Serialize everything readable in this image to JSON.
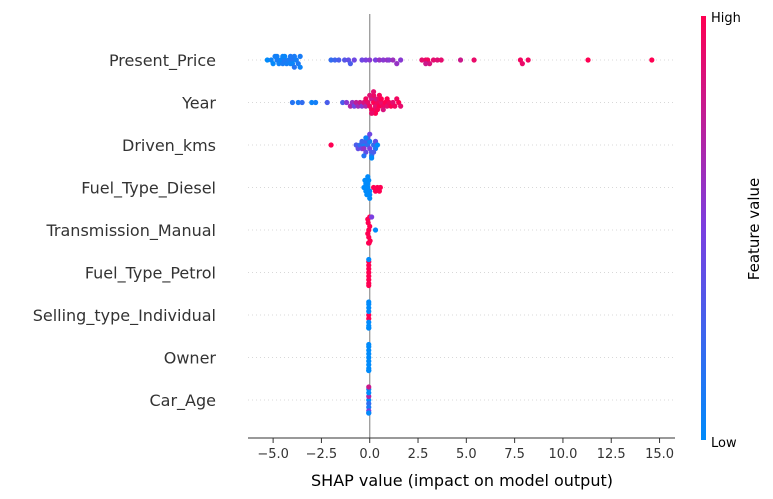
{
  "chart_data": {
    "type": "scatter",
    "subtype": "shap-beeswarm",
    "title": "",
    "xlabel": "SHAP value (impact on model output)",
    "ylabel": "",
    "xlim": [
      -6.3,
      15.8
    ],
    "x_ticks": [
      -5.0,
      -2.5,
      0.0,
      2.5,
      5.0,
      7.5,
      10.0,
      12.5,
      15.0
    ],
    "x_tick_labels": [
      "−5.0",
      "−2.5",
      "0.0",
      "2.5",
      "5.0",
      "7.5",
      "10.0",
      "12.5",
      "15.0"
    ],
    "zero_line": true,
    "colorbar": {
      "title": "Feature value",
      "high_label": "High",
      "low_label": "Low",
      "low_color": "#008bfb",
      "mid_color": "#7b3fe0",
      "high_color": "#ff0052"
    },
    "features": [
      {
        "name": "Present_Price",
        "points": [
          {
            "x": -5.3,
            "v": 0.0
          },
          {
            "x": -5.1,
            "v": 0.05
          },
          {
            "x": -5.0,
            "v": 0.02
          },
          {
            "x": -4.9,
            "v": 0.08
          },
          {
            "x": -4.8,
            "v": 0.1
          },
          {
            "x": -4.7,
            "v": 0.06
          },
          {
            "x": -4.6,
            "v": 0.04
          },
          {
            "x": -4.5,
            "v": 0.1
          },
          {
            "x": -4.5,
            "v": 0.05
          },
          {
            "x": -4.4,
            "v": 0.12
          },
          {
            "x": -4.3,
            "v": 0.08
          },
          {
            "x": -4.2,
            "v": 0.1
          },
          {
            "x": -4.1,
            "v": 0.06
          },
          {
            "x": -4.0,
            "v": 0.14
          },
          {
            "x": -4.0,
            "v": 0.04
          },
          {
            "x": -3.9,
            "v": 0.1
          },
          {
            "x": -3.8,
            "v": 0.08
          },
          {
            "x": -3.7,
            "v": 0.12
          },
          {
            "x": -3.6,
            "v": 0.1
          },
          {
            "x": -3.6,
            "v": 0.05
          },
          {
            "x": -3.9,
            "v": 0.15
          },
          {
            "x": -4.4,
            "v": 0.03
          },
          {
            "x": -4.8,
            "v": 0.07
          },
          {
            "x": -4.1,
            "v": 0.12
          },
          {
            "x": -2.0,
            "v": 0.2
          },
          {
            "x": -1.8,
            "v": 0.25
          },
          {
            "x": -1.6,
            "v": 0.3
          },
          {
            "x": -1.3,
            "v": 0.35
          },
          {
            "x": -1.1,
            "v": 0.4
          },
          {
            "x": -1.0,
            "v": 0.3
          },
          {
            "x": -0.8,
            "v": 0.45
          },
          {
            "x": -0.4,
            "v": 0.45
          },
          {
            "x": -0.2,
            "v": 0.5
          },
          {
            "x": 0.0,
            "v": 0.55
          },
          {
            "x": 0.3,
            "v": 0.5
          },
          {
            "x": 0.5,
            "v": 0.6
          },
          {
            "x": 0.7,
            "v": 0.55
          },
          {
            "x": 0.9,
            "v": 0.6
          },
          {
            "x": 1.0,
            "v": 0.55
          },
          {
            "x": 1.2,
            "v": 0.62
          },
          {
            "x": 1.4,
            "v": 0.6
          },
          {
            "x": 1.6,
            "v": 0.55
          },
          {
            "x": 2.7,
            "v": 0.9
          },
          {
            "x": 2.9,
            "v": 0.92
          },
          {
            "x": 3.0,
            "v": 0.95
          },
          {
            "x": 3.1,
            "v": 0.85
          },
          {
            "x": 3.3,
            "v": 0.9
          },
          {
            "x": 3.5,
            "v": 0.88
          },
          {
            "x": 3.7,
            "v": 0.9
          },
          {
            "x": 2.9,
            "v": 0.8
          },
          {
            "x": 4.7,
            "v": 0.8
          },
          {
            "x": 5.4,
            "v": 0.92
          },
          {
            "x": 7.8,
            "v": 0.95
          },
          {
            "x": 7.9,
            "v": 0.92
          },
          {
            "x": 8.2,
            "v": 0.95
          },
          {
            "x": 11.3,
            "v": 1.0
          },
          {
            "x": 14.6,
            "v": 1.0
          }
        ]
      },
      {
        "name": "Year",
        "points": [
          {
            "x": -4.0,
            "v": 0.15
          },
          {
            "x": -3.7,
            "v": 0.1
          },
          {
            "x": -3.5,
            "v": 0.2
          },
          {
            "x": -3.0,
            "v": 0.05
          },
          {
            "x": -2.8,
            "v": 0.08
          },
          {
            "x": -2.2,
            "v": 0.3
          },
          {
            "x": -1.4,
            "v": 0.3
          },
          {
            "x": -1.2,
            "v": 0.55
          },
          {
            "x": -1.0,
            "v": 0.7
          },
          {
            "x": -0.9,
            "v": 0.6
          },
          {
            "x": -0.8,
            "v": 0.45
          },
          {
            "x": -0.7,
            "v": 0.75
          },
          {
            "x": -0.6,
            "v": 0.65
          },
          {
            "x": -0.5,
            "v": 0.8
          },
          {
            "x": -0.4,
            "v": 0.55
          },
          {
            "x": -0.3,
            "v": 0.85
          },
          {
            "x": -0.2,
            "v": 0.7
          },
          {
            "x": -0.1,
            "v": 0.9
          },
          {
            "x": 0.0,
            "v": 0.95
          },
          {
            "x": 0.1,
            "v": 0.8
          },
          {
            "x": 0.2,
            "v": 1.0
          },
          {
            "x": 0.3,
            "v": 0.9
          },
          {
            "x": 0.4,
            "v": 0.95
          },
          {
            "x": 0.5,
            "v": 1.0
          },
          {
            "x": 0.6,
            "v": 0.9
          },
          {
            "x": 0.7,
            "v": 0.95
          },
          {
            "x": 0.8,
            "v": 1.0
          },
          {
            "x": 0.9,
            "v": 0.9
          },
          {
            "x": 1.0,
            "v": 0.95
          },
          {
            "x": 1.1,
            "v": 1.0
          },
          {
            "x": 1.2,
            "v": 0.9
          },
          {
            "x": 1.3,
            "v": 0.95
          },
          {
            "x": 1.4,
            "v": 0.95
          },
          {
            "x": 1.5,
            "v": 1.0
          },
          {
            "x": 1.6,
            "v": 0.9
          },
          {
            "x": 0.3,
            "v": 0.85
          },
          {
            "x": 0.5,
            "v": 0.92
          },
          {
            "x": 0.2,
            "v": 0.88
          },
          {
            "x": 0.6,
            "v": 1.0
          },
          {
            "x": 0.1,
            "v": 0.98
          },
          {
            "x": -0.2,
            "v": 0.95
          },
          {
            "x": 0.4,
            "v": 0.98
          },
          {
            "x": 0.7,
            "v": 0.85
          },
          {
            "x": 0.9,
            "v": 1.0
          },
          {
            "x": 0.2,
            "v": 0.93
          },
          {
            "x": 0.0,
            "v": 0.88
          },
          {
            "x": 0.3,
            "v": 1.0
          },
          {
            "x": 0.5,
            "v": 0.97
          },
          {
            "x": 0.1,
            "v": 0.92
          },
          {
            "x": 0.2,
            "v": 0.9
          }
        ]
      },
      {
        "name": "Driven_kms",
        "points": [
          {
            "x": -2.0,
            "v": 1.0
          },
          {
            "x": -0.7,
            "v": 0.3
          },
          {
            "x": -0.6,
            "v": 0.4
          },
          {
            "x": -0.5,
            "v": 0.2
          },
          {
            "x": -0.4,
            "v": 0.5
          },
          {
            "x": -0.3,
            "v": 0.1
          },
          {
            "x": -0.3,
            "v": 0.6
          },
          {
            "x": -0.2,
            "v": 0.3
          },
          {
            "x": -0.2,
            "v": 0.4
          },
          {
            "x": -0.1,
            "v": 0.2
          },
          {
            "x": 0.0,
            "v": 0.5
          },
          {
            "x": 0.0,
            "v": 0.05
          },
          {
            "x": 0.1,
            "v": 0.3
          },
          {
            "x": 0.2,
            "v": 0.2
          },
          {
            "x": 0.3,
            "v": 0.1
          },
          {
            "x": 0.3,
            "v": 0.4
          },
          {
            "x": 0.4,
            "v": 0.0
          },
          {
            "x": -0.4,
            "v": 0.25
          },
          {
            "x": -0.1,
            "v": 0.35
          },
          {
            "x": 0.1,
            "v": 0.15
          },
          {
            "x": -0.2,
            "v": 0.05
          },
          {
            "x": 0.0,
            "v": 0.45
          },
          {
            "x": 0.2,
            "v": 0.3
          },
          {
            "x": -0.3,
            "v": 0.15
          },
          {
            "x": 0.1,
            "v": 0.0
          }
        ]
      },
      {
        "name": "Fuel_Type_Diesel",
        "points": [
          {
            "x": -0.3,
            "v": 0.0
          },
          {
            "x": -0.2,
            "v": 0.0
          },
          {
            "x": -0.1,
            "v": 0.0
          },
          {
            "x": 0.0,
            "v": 0.0
          },
          {
            "x": -0.2,
            "v": 0.0
          },
          {
            "x": -0.1,
            "v": 0.0
          },
          {
            "x": 0.0,
            "v": 0.0
          },
          {
            "x": -0.05,
            "v": 0.0
          },
          {
            "x": -0.15,
            "v": 0.0
          },
          {
            "x": -0.25,
            "v": 0.0
          },
          {
            "x": 0.0,
            "v": 0.0
          },
          {
            "x": -0.1,
            "v": 0.0
          },
          {
            "x": 0.2,
            "v": 1.0
          },
          {
            "x": 0.3,
            "v": 1.0
          },
          {
            "x": 0.4,
            "v": 1.0
          },
          {
            "x": 0.5,
            "v": 1.0
          },
          {
            "x": 0.55,
            "v": 1.0
          }
        ]
      },
      {
        "name": "Transmission_Manual",
        "points": [
          {
            "x": -0.05,
            "v": 1.0
          },
          {
            "x": -0.1,
            "v": 1.0
          },
          {
            "x": 0.0,
            "v": 1.0
          },
          {
            "x": -0.05,
            "v": 1.0
          },
          {
            "x": -0.08,
            "v": 1.0
          },
          {
            "x": 0.02,
            "v": 1.0
          },
          {
            "x": -0.1,
            "v": 1.0
          },
          {
            "x": -0.03,
            "v": 1.0
          },
          {
            "x": 0.0,
            "v": 1.0
          },
          {
            "x": -0.06,
            "v": 1.0
          },
          {
            "x": 0.1,
            "v": 0.5
          },
          {
            "x": 0.3,
            "v": 0.0
          }
        ]
      },
      {
        "name": "Fuel_Type_Petrol",
        "points": [
          {
            "x": -0.05,
            "v": 1.0
          },
          {
            "x": -0.05,
            "v": 1.0
          },
          {
            "x": -0.05,
            "v": 1.0
          },
          {
            "x": -0.05,
            "v": 1.0
          },
          {
            "x": -0.05,
            "v": 1.0
          },
          {
            "x": -0.05,
            "v": 1.0
          },
          {
            "x": -0.05,
            "v": 1.0
          },
          {
            "x": -0.05,
            "v": 1.0
          },
          {
            "x": -0.05,
            "v": 0.0
          }
        ]
      },
      {
        "name": "Selling_type_Individual",
        "points": [
          {
            "x": -0.05,
            "v": 1.0
          },
          {
            "x": -0.05,
            "v": 1.0
          },
          {
            "x": -0.05,
            "v": 0.0
          },
          {
            "x": -0.05,
            "v": 0.0
          },
          {
            "x": -0.05,
            "v": 0.0
          },
          {
            "x": -0.05,
            "v": 0.0
          },
          {
            "x": -0.05,
            "v": 0.0
          },
          {
            "x": -0.05,
            "v": 0.0
          },
          {
            "x": -0.05,
            "v": 0.0
          },
          {
            "x": -0.05,
            "v": 0.0
          }
        ]
      },
      {
        "name": "Owner",
        "points": [
          {
            "x": -0.05,
            "v": 0.0
          },
          {
            "x": -0.05,
            "v": 0.0
          },
          {
            "x": -0.05,
            "v": 0.0
          },
          {
            "x": -0.05,
            "v": 0.0
          },
          {
            "x": -0.05,
            "v": 0.0
          },
          {
            "x": -0.05,
            "v": 0.0
          },
          {
            "x": -0.05,
            "v": 0.0
          },
          {
            "x": -0.05,
            "v": 0.0
          },
          {
            "x": -0.05,
            "v": 0.0
          },
          {
            "x": -0.05,
            "v": 0.0
          }
        ]
      },
      {
        "name": "Car_Age",
        "points": [
          {
            "x": -0.05,
            "v": 0.0
          },
          {
            "x": -0.05,
            "v": 0.2
          },
          {
            "x": -0.05,
            "v": 0.7
          },
          {
            "x": -0.05,
            "v": 0.1
          },
          {
            "x": -0.05,
            "v": 0.0
          },
          {
            "x": -0.05,
            "v": 0.5
          },
          {
            "x": -0.05,
            "v": 0.0
          },
          {
            "x": -0.05,
            "v": 0.3
          },
          {
            "x": -0.05,
            "v": 0.8
          },
          {
            "x": -0.05,
            "v": 0.0
          }
        ]
      }
    ]
  }
}
